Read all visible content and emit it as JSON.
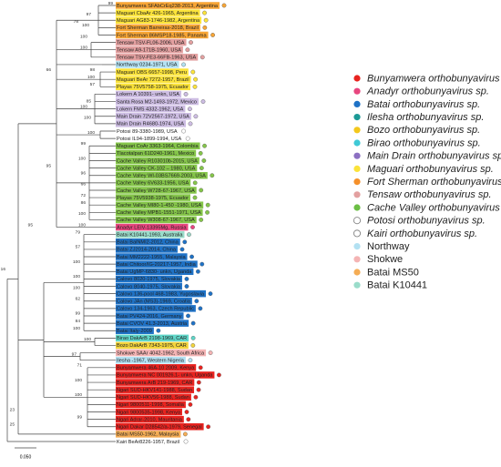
{
  "tree": {
    "leaves": [
      {
        "label": "Bunyamwera SFAbCrEq238-2013, Argentina",
        "color": "#f7a535"
      },
      {
        "label": "Maguari CbaAr 426-1965, Argentina",
        "color": "#fbe33a"
      },
      {
        "label": "Maguari AG83-1746-1982, Argentina",
        "color": "#fbe33a"
      },
      {
        "label": "Fort Sherman Barreiras-2018, Brazil",
        "color": "#f7a535"
      },
      {
        "label": "Fort Sherman 86MSP18-1985, Panama",
        "color": "#f7a535"
      },
      {
        "label": "Tensaw TSV-FL06-2006, USA",
        "color": "#e3a0a0"
      },
      {
        "label": "Tensaw A9-171B-1960, USA",
        "color": "#e3a0a0"
      },
      {
        "label": "Tensaw TSV-FE3-66FB-1963, USA",
        "color": "#e3a0a0"
      },
      {
        "label": "Northway 0234-1971, USA",
        "color": "#b3e1f2"
      },
      {
        "label": "Maguari OBS 6657-1998, Peru",
        "color": "#fbe33a"
      },
      {
        "label": "Maguari BeAr 7272-1957, Brazil",
        "color": "#fbe33a"
      },
      {
        "label": "Playas 75V5758-1975, Ecuador",
        "color": "#fbe33a"
      },
      {
        "label": "Lokern A 10391- unkn, USA",
        "color": "#cdbde3"
      },
      {
        "label": "Santa Rosa M2-1493-1972, Mexico",
        "color": "#cdbde3"
      },
      {
        "label": "Lokern FMS 4332-1962, USA",
        "color": "#cdbde3"
      },
      {
        "label": "Main Drain 72V2567-1972, USA",
        "color": "#cdbde3"
      },
      {
        "label": "Main Drain R4680-1974, USA",
        "color": "#cdbde3"
      },
      {
        "label": "Potosi 89-3380-1989, USA",
        "color": "#ffffff"
      },
      {
        "label": "Potosi IL94-1899-1994, USA",
        "color": "#ffffff"
      },
      {
        "label": "Maguari CoAr 3363-1964, Colombia",
        "color": "#85c54a"
      },
      {
        "label": "Tlacotalpan 61D240-1961, Mexico",
        "color": "#85c54a"
      },
      {
        "label": "Cache Valley R103010b-2015, USA",
        "color": "#85c54a"
      },
      {
        "label": "Cache Valley CK-102 – 1980, USA",
        "color": "#85c54a"
      },
      {
        "label": "Cache Valley WI-03BS7669-2003, USA",
        "color": "#85c54a"
      },
      {
        "label": "Cache Valley 6V633-1956, USA",
        "color": "#85c54a"
      },
      {
        "label": "Cache Valley W728-67-1967, USA",
        "color": "#85c54a"
      },
      {
        "label": "Playas 75V5938-1975, Ecuador",
        "color": "#85c54a"
      },
      {
        "label": "Cache Valley MI80-1-450 -1980, USA",
        "color": "#85c54a"
      },
      {
        "label": "Cache Valley MPB1-1551-1971, USA",
        "color": "#85c54a"
      },
      {
        "label": "Cache Valley W308-67-1967, USA",
        "color": "#85c54a"
      },
      {
        "label": "Anadyr LEIV-13395Mg, Russia",
        "color": "#e8467f"
      },
      {
        "label": "Batai K10441-1993, Australia",
        "color": "#9adcca"
      },
      {
        "label": "Batai BalNMI2-2012, China",
        "color": "#1f72c6"
      },
      {
        "label": "Batai ZJ2014-2014, China",
        "color": "#1f72c6"
      },
      {
        "label": "Batai MM2222-1955, Malaysia",
        "color": "#1f72c6"
      },
      {
        "label": "Batai Chitoor/IG-20217-1957, India",
        "color": "#1f72c6"
      },
      {
        "label": "Batai UgMP-6830- unkn, Uganda",
        "color": "#1f72c6"
      },
      {
        "label": "Calovo 8020-1975, Slovakia",
        "color": "#1f72c6"
      },
      {
        "label": "Calovo 8040-1975, Slovakia",
        "color": "#1f72c6"
      },
      {
        "label": "Calovo 136-pool 468-1983, Yugoslavia",
        "color": "#1f72c6"
      },
      {
        "label": "Calovo JAn (MS3)-1969, Croatia",
        "color": "#1f72c6"
      },
      {
        "label": "Calovo 134-1963, Czech Republic",
        "color": "#1f72c6"
      },
      {
        "label": "Batai PV424-2016, Germany",
        "color": "#1f72c6"
      },
      {
        "label": "Batai CVOV 41.3-2013, Austria",
        "color": "#1f72c6"
      },
      {
        "label": "Batai Italy-2009",
        "color": "#1f72c6"
      },
      {
        "label": "Birao DakArB 2198-1969, CAR",
        "color": "#5fd6c8"
      },
      {
        "label": "Bozo DakArB 7343-1975, CAR",
        "color": "#f3d43c"
      },
      {
        "label": "Shokwe SAAr 4042-1962, South Africa",
        "color": "#f4b4b4"
      },
      {
        "label": "Ilesha -1967, Western Nigeria",
        "color": "#b3e1f2"
      },
      {
        "label": "Bunyamwera 46A-10 2009, Kenya",
        "color": "#e8231f"
      },
      {
        "label": "Bunyamwera NC 001926.1- unkn, Uganda",
        "color": "#e8231f"
      },
      {
        "label": "Bunyamwera ArB 219-1969, CAR",
        "color": "#e8231f"
      },
      {
        "label": "Ngari SUD-HKV141-1988, Sudan",
        "color": "#e8231f"
      },
      {
        "label": "Ngari SUD-HKV56-1988, Sudan",
        "color": "#e8231f"
      },
      {
        "label": "Ngari 9800511-1998, Somalia",
        "color": "#e8231f"
      },
      {
        "label": "Ngari 9800535-1998, Kenya",
        "color": "#e8231f"
      },
      {
        "label": "Ngari Adrar-2010, Mauritania",
        "color": "#e8231f"
      },
      {
        "label": "Ngari Dakar D28542/a-1979, Senegal",
        "color": "#e8231f"
      },
      {
        "label": "Batai MS50-1962, Malaysia",
        "color": "#f5ad55"
      },
      {
        "label": "Kairi BeAr8226-1957, Brazil",
        "color": "#ffffff"
      }
    ],
    "bootstrap_values": [
      99,
      97,
      100,
      78,
      100,
      100,
      66,
      98,
      100,
      57,
      85,
      100,
      100,
      100,
      99,
      100,
      95,
      96,
      66,
      72,
      86,
      100,
      100,
      79,
      57,
      16,
      95,
      100,
      100,
      100,
      62,
      99,
      100,
      84,
      23,
      25,
      100,
      97,
      71,
      100,
      100,
      99
    ]
  },
  "legend": [
    {
      "label": "Bunyamwera orthobunyavirus sp.",
      "color": "#e8231f",
      "italic": true
    },
    {
      "label": "Anadyr orthobunyavirus sp.",
      "color": "#e8467f",
      "italic": true
    },
    {
      "label": "Batai orthobunyavirus sp.",
      "color": "#1f72c6",
      "italic": true
    },
    {
      "label": "Ilesha orthobunyavirus sp.",
      "color": "#1c9a96",
      "italic": true
    },
    {
      "label": "Bozo orthobunyavirus sp.",
      "color": "#f3c81c",
      "italic": true
    },
    {
      "label": "Birao orthobunyavirus sp.",
      "color": "#3fc9d6",
      "italic": true
    },
    {
      "label": "Main Drain orthobunyavirus sp.",
      "color": "#8c70c2",
      "italic": true
    },
    {
      "label": "Maguari orthobunyavirus sp.",
      "color": "#fbe33a",
      "italic": true
    },
    {
      "label": "Fort Sherman orthobunyavirus sp.",
      "color": "#f5902a",
      "italic": true
    },
    {
      "label": "Tensaw orthobunyavirus sp.",
      "color": "#e3a0a0",
      "italic": true
    },
    {
      "label": "Cache Valley orthobunyavirus sp.",
      "color": "#6cbf45",
      "italic": true
    },
    {
      "label": "Potosi orthobunyavirus sp.",
      "color": "#ffffff",
      "italic": true
    },
    {
      "label": "Kairi orthobunyavirus sp.",
      "color": "#ffffff",
      "italic": true
    },
    {
      "label": "Northway",
      "color": "#b3e1f2",
      "italic": false
    },
    {
      "label": "Shokwe",
      "color": "#f4b4b4",
      "italic": false
    },
    {
      "label": "Batai MS50",
      "color": "#f5ad55",
      "italic": false
    },
    {
      "label": "Batai K10441",
      "color": "#9adcca",
      "italic": false
    }
  ],
  "scale_bar": {
    "label": "0.050"
  }
}
